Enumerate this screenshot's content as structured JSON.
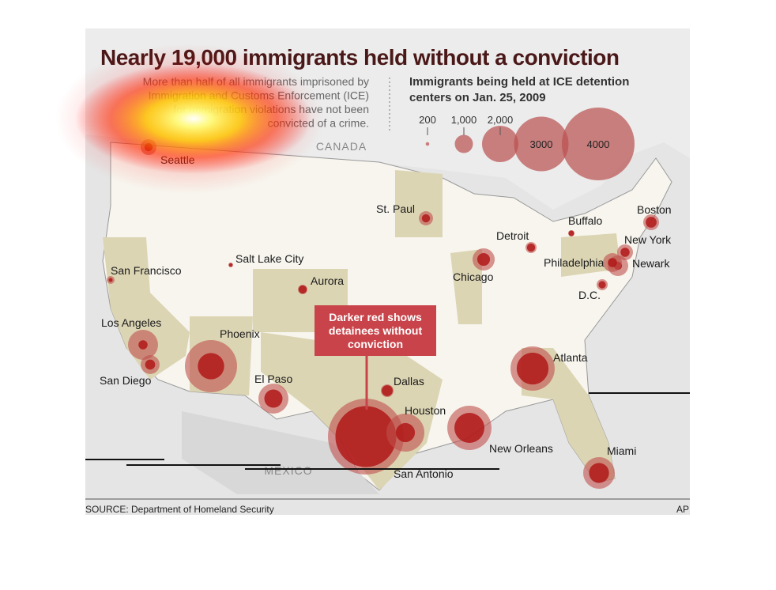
{
  "title": "Nearly 19,000 immigrants held without a conviction",
  "description": [
    "More than half of all immigrants imprisoned by",
    "Immigration and Customs Enforcement (ICE)",
    "for immigration violations have not been",
    "convicted of a crime."
  ],
  "legend": {
    "title": [
      "Immigrants being held at ICE detention",
      "centers on Jan. 25, 2009"
    ],
    "items": [
      200,
      {
        "value": 1000,
        "label": "1,000"
      },
      {
        "value": 2000,
        "label": "2,000"
      },
      3000,
      4000
    ]
  },
  "regions": [
    "CANADA",
    "MEXICO"
  ],
  "callout": [
    "Darker red shows",
    "detainees without",
    "conviction"
  ],
  "cities": [
    {
      "name": "Seattle",
      "detainees": 870,
      "without_conviction": 450
    },
    {
      "name": "San Francisco",
      "detainees": 430,
      "without_conviction": 220
    },
    {
      "name": "Los Angeles",
      "detainees": 1650,
      "without_conviction": 500
    },
    {
      "name": "San Diego",
      "detainees": 1040,
      "without_conviction": 550
    },
    {
      "name": "Phoenix",
      "detainees": 2870,
      "without_conviction": 1450
    },
    {
      "name": "Salt Lake City",
      "detainees": 260,
      "without_conviction": 200
    },
    {
      "name": "Aurora",
      "detainees": 520,
      "without_conviction": 450
    },
    {
      "name": "El Paso",
      "detainees": 1650,
      "without_conviction": 1000
    },
    {
      "name": "Dallas",
      "detainees": 700,
      "without_conviction": 600
    },
    {
      "name": "San Antonio",
      "detainees": 4170,
      "without_conviction": 3350
    },
    {
      "name": "Houston",
      "detainees": 2090,
      "without_conviction": 1050
    },
    {
      "name": "New Orleans",
      "detainees": 2430,
      "without_conviction": 1650
    },
    {
      "name": "Atlanta",
      "detainees": 2430,
      "without_conviction": 1750
    },
    {
      "name": "Miami",
      "detainees": 1740,
      "without_conviction": 1100
    },
    {
      "name": "St. Paul",
      "detainees": 780,
      "without_conviction": 450
    },
    {
      "name": "Chicago",
      "detainees": 1220,
      "without_conviction": 700
    },
    {
      "name": "Detroit",
      "detainees": 610,
      "without_conviction": 450
    },
    {
      "name": "Buffalo",
      "detainees": 350,
      "without_conviction": 300
    },
    {
      "name": "Boston",
      "detainees": 870,
      "without_conviction": 600
    },
    {
      "name": "New York",
      "detainees": 870,
      "without_conviction": 500
    },
    {
      "name": "Newark",
      "detainees": 1130,
      "without_conviction": 450
    },
    {
      "name": "Philadelphia",
      "detainees": 1040,
      "without_conviction": 500
    },
    {
      "name": "D.C.",
      "detainees": 610,
      "without_conviction": 400
    }
  ],
  "source": "SOURCE: Department of Homeland Security",
  "credit": "AP"
}
